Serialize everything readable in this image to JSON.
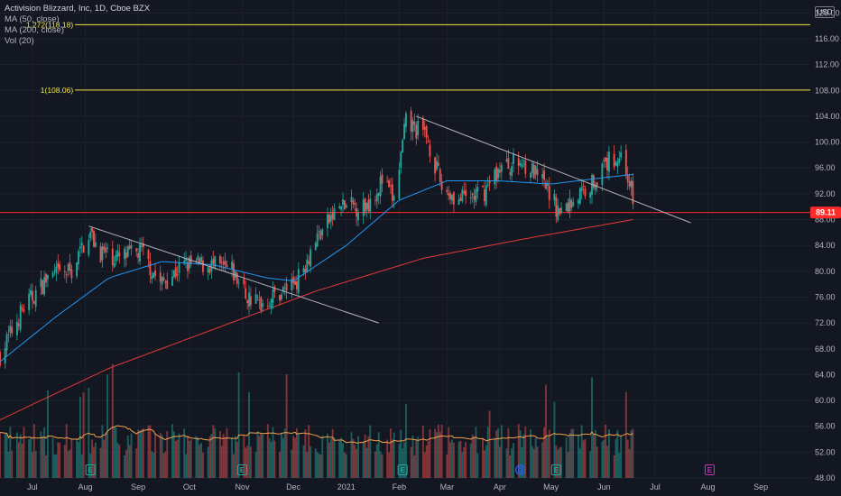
{
  "legend": {
    "title": "Activision Blizzard, Inc, 1D, Cboe BZX",
    "ma50": "MA (50, close)",
    "ma200": "MA (200, close)",
    "vol": "Vol (20)"
  },
  "currency": "USD",
  "colors": {
    "background": "#131722",
    "up": "#26a69a",
    "down": "#ef5350",
    "ma50": "#2196f3",
    "ma200": "#e53935",
    "vol_ma": "#f0a04b",
    "fib": "#f0e442",
    "support": "#ff2a2a",
    "trendline": "#b2b5be",
    "earnings": "#26a69a",
    "dividend": "#2962ff",
    "future_event": "#c030c0"
  },
  "chart_data": {
    "type": "candlestick",
    "title": "Activision Blizzard, Inc, 1D, Cboe BZX",
    "y_axis": {
      "min": 48,
      "max": 122,
      "ticks": [
        48,
        52,
        56,
        60,
        64,
        68,
        72,
        76,
        80,
        84,
        88,
        92,
        96,
        100,
        104,
        108,
        112,
        116,
        120
      ],
      "tick_labels": [
        "48.00",
        "52.00",
        "56.00",
        "60.00",
        "64.00",
        "68.00",
        "72.00",
        "76.00",
        "80.00",
        "84.00",
        "88.00",
        "92.00",
        "96.00",
        "100.00",
        "104.00",
        "108.00",
        "112.00",
        "116.00",
        "120.00"
      ]
    },
    "x_axis": {
      "start": "2020-06-12",
      "end": "2021-09-30",
      "labels": [
        {
          "date": "2020-07-01",
          "label": "Jul"
        },
        {
          "date": "2020-08-01",
          "label": "Aug"
        },
        {
          "date": "2020-09-01",
          "label": "Sep"
        },
        {
          "date": "2020-10-01",
          "label": "Oct"
        },
        {
          "date": "2020-11-01",
          "label": "Nov"
        },
        {
          "date": "2020-12-01",
          "label": "Dec"
        },
        {
          "date": "2021-01-01",
          "label": "2021"
        },
        {
          "date": "2021-02-01",
          "label": "Feb"
        },
        {
          "date": "2021-03-01",
          "label": "Mar"
        },
        {
          "date": "2021-04-01",
          "label": "Apr"
        },
        {
          "date": "2021-05-01",
          "label": "May"
        },
        {
          "date": "2021-06-01",
          "label": "Jun"
        },
        {
          "date": "2021-07-01",
          "label": "Jul"
        },
        {
          "date": "2021-08-01",
          "label": "Aug"
        },
        {
          "date": "2021-09-01",
          "label": "Sep"
        }
      ]
    },
    "price_keypoints": [
      {
        "date": "2020-06-12",
        "close": 67
      },
      {
        "date": "2020-06-25",
        "close": 74
      },
      {
        "date": "2020-07-10",
        "close": 79
      },
      {
        "date": "2020-07-24",
        "close": 80
      },
      {
        "date": "2020-08-03",
        "close": 86
      },
      {
        "date": "2020-08-10",
        "close": 83
      },
      {
        "date": "2020-08-20",
        "close": 82
      },
      {
        "date": "2020-09-03",
        "close": 83
      },
      {
        "date": "2020-09-14",
        "close": 78
      },
      {
        "date": "2020-09-28",
        "close": 81
      },
      {
        "date": "2020-10-12",
        "close": 81
      },
      {
        "date": "2020-10-26",
        "close": 80
      },
      {
        "date": "2020-11-04",
        "close": 76
      },
      {
        "date": "2020-11-12",
        "close": 75
      },
      {
        "date": "2020-11-25",
        "close": 77
      },
      {
        "date": "2020-12-04",
        "close": 79
      },
      {
        "date": "2020-12-14",
        "close": 85
      },
      {
        "date": "2020-12-28",
        "close": 90
      },
      {
        "date": "2021-01-12",
        "close": 90
      },
      {
        "date": "2021-01-22",
        "close": 94
      },
      {
        "date": "2021-01-29",
        "close": 91
      },
      {
        "date": "2021-02-05",
        "close": 103
      },
      {
        "date": "2021-02-17",
        "close": 101
      },
      {
        "date": "2021-02-26",
        "close": 93
      },
      {
        "date": "2021-03-08",
        "close": 91
      },
      {
        "date": "2021-03-22",
        "close": 92
      },
      {
        "date": "2021-04-01",
        "close": 96
      },
      {
        "date": "2021-04-15",
        "close": 97
      },
      {
        "date": "2021-04-28",
        "close": 93
      },
      {
        "date": "2021-05-06",
        "close": 89
      },
      {
        "date": "2021-05-14",
        "close": 91
      },
      {
        "date": "2021-05-26",
        "close": 94
      },
      {
        "date": "2021-06-04",
        "close": 97
      },
      {
        "date": "2021-06-11",
        "close": 98
      },
      {
        "date": "2021-06-16",
        "close": 94
      },
      {
        "date": "2021-06-18",
        "close": 91
      }
    ],
    "ma50_keypoints": [
      {
        "date": "2020-06-12",
        "value": 66
      },
      {
        "date": "2020-07-15",
        "value": 73
      },
      {
        "date": "2020-08-15",
        "value": 79
      },
      {
        "date": "2020-09-15",
        "value": 81.5
      },
      {
        "date": "2020-10-15",
        "value": 81
      },
      {
        "date": "2020-11-15",
        "value": 79
      },
      {
        "date": "2020-12-01",
        "value": 78.5
      },
      {
        "date": "2021-01-01",
        "value": 84
      },
      {
        "date": "2021-02-01",
        "value": 91
      },
      {
        "date": "2021-03-01",
        "value": 94
      },
      {
        "date": "2021-04-01",
        "value": 94
      },
      {
        "date": "2021-05-01",
        "value": 93.5
      },
      {
        "date": "2021-06-01",
        "value": 94.5
      },
      {
        "date": "2021-06-18",
        "value": 95
      }
    ],
    "ma200_keypoints": [
      {
        "date": "2020-06-12",
        "value": 57
      },
      {
        "date": "2020-08-15",
        "value": 65
      },
      {
        "date": "2020-10-15",
        "value": 71
      },
      {
        "date": "2020-12-15",
        "value": 77
      },
      {
        "date": "2021-02-15",
        "value": 82
      },
      {
        "date": "2021-04-15",
        "value": 85
      },
      {
        "date": "2021-06-18",
        "value": 88
      }
    ],
    "fib_levels": [
      {
        "value": 118.18,
        "label": "1.272(118.18)"
      },
      {
        "value": 108.06,
        "label": "1(108.06)"
      }
    ],
    "support_level": {
      "value": 89.11,
      "label": "89.11"
    },
    "trendlines": [
      {
        "from": {
          "date": "2020-08-03",
          "value": 87
        },
        "to": {
          "date": "2021-01-20",
          "value": 72
        }
      },
      {
        "from": {
          "date": "2021-02-11",
          "value": 104
        },
        "to": {
          "date": "2021-07-22",
          "value": 87.5
        }
      }
    ],
    "events": [
      {
        "date": "2020-08-04",
        "label": "E",
        "kind": "earnings"
      },
      {
        "date": "2020-11-01",
        "label": "E",
        "kind": "earnings"
      },
      {
        "date": "2021-02-03",
        "label": "E",
        "kind": "earnings"
      },
      {
        "date": "2021-04-13",
        "label": "D",
        "kind": "dividend"
      },
      {
        "date": "2021-05-04",
        "label": "E",
        "kind": "earnings"
      },
      {
        "date": "2021-08-02",
        "label": "E",
        "kind": "future"
      }
    ]
  }
}
